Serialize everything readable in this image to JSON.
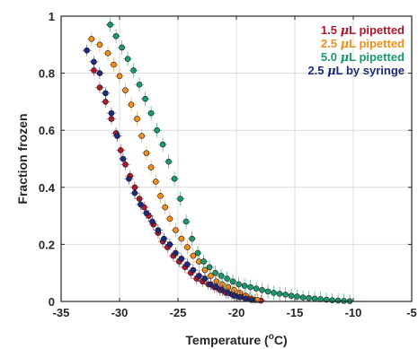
{
  "chart_data": {
    "type": "scatter",
    "title": "",
    "xlabel": "Temperature (°C)",
    "xlabel_parts": {
      "base": "Temperature (",
      "sup": "o",
      "unit": "C)"
    },
    "ylabel": "Fraction frozen",
    "xlim": [
      -35,
      -5
    ],
    "ylim": [
      0,
      1
    ],
    "xticks": [
      "-35",
      "-30",
      "-25",
      "-20",
      "-15",
      "-10",
      "-5"
    ],
    "yticks": [
      "0",
      "0.2",
      "0.4",
      "0.6",
      "0.8",
      "1"
    ],
    "xtick_values": [
      -35,
      -30,
      -25,
      -20,
      -15,
      -10,
      -5
    ],
    "ytick_values": [
      0,
      0.2,
      0.4,
      0.6,
      0.8,
      1
    ],
    "grid": true,
    "error_bars": true,
    "legend_position": "top-right",
    "series": [
      {
        "name": "1.5 μL pipetted",
        "legend_parts": {
          "num": "1.5 ",
          "mu": "μ",
          "rest": "L pipetted"
        },
        "color": "#b2182b",
        "x": [
          -32.2,
          -31.7,
          -31.2,
          -30.7,
          -30.3,
          -29.9,
          -29.5,
          -29.1,
          -28.7,
          -28.3,
          -27.9,
          -27.5,
          -27.1,
          -26.7,
          -26.3,
          -25.9,
          -25.4,
          -24.9,
          -24.4,
          -23.9,
          -23.4,
          -22.9,
          -22.4,
          -21.9,
          -21.4,
          -20.9,
          -20.4,
          -19.9,
          -19.4,
          -18.9,
          -18.4,
          -17.9
        ],
        "y": [
          0.81,
          0.75,
          0.7,
          0.64,
          0.59,
          0.53,
          0.48,
          0.44,
          0.4,
          0.36,
          0.33,
          0.3,
          0.27,
          0.24,
          0.21,
          0.19,
          0.16,
          0.14,
          0.12,
          0.1,
          0.08,
          0.07,
          0.06,
          0.05,
          0.04,
          0.03,
          0.025,
          0.02,
          0.015,
          0.01,
          0.005,
          0.003
        ],
        "xerr": 0.4,
        "yerr": 0.02
      },
      {
        "name": "2.5 μL pipetted",
        "legend_parts": {
          "num": "2.5 ",
          "mu": "μ",
          "rest": "L pipetted"
        },
        "color": "#f28e1c",
        "x": [
          -32.4,
          -31.7,
          -31.0,
          -30.5,
          -30.0,
          -29.5,
          -29.0,
          -28.5,
          -28.1,
          -27.7,
          -27.3,
          -26.9,
          -26.5,
          -26.1,
          -25.7,
          -25.2,
          -24.7,
          -24.2,
          -23.7,
          -23.2,
          -22.7,
          -22.2,
          -21.7,
          -21.2,
          -20.7,
          -20.2,
          -19.7,
          -19.2,
          -18.7,
          -18.2
        ],
        "y": [
          0.92,
          0.9,
          0.87,
          0.83,
          0.79,
          0.74,
          0.69,
          0.64,
          0.58,
          0.52,
          0.47,
          0.42,
          0.37,
          0.33,
          0.29,
          0.25,
          0.22,
          0.19,
          0.16,
          0.14,
          0.11,
          0.09,
          0.07,
          0.06,
          0.05,
          0.04,
          0.03,
          0.02,
          0.01,
          0.005
        ],
        "xerr": 0.4,
        "yerr": 0.025
      },
      {
        "name": "5.0 μL pipetted",
        "legend_parts": {
          "num": "5.0 ",
          "mu": "μ",
          "rest": "L pipetted"
        },
        "color": "#1a9a6c",
        "x": [
          -30.8,
          -30.3,
          -29.8,
          -29.3,
          -28.8,
          -28.3,
          -27.8,
          -27.3,
          -26.8,
          -26.3,
          -25.8,
          -25.3,
          -24.8,
          -24.3,
          -23.8,
          -23.3,
          -22.8,
          -22.3,
          -21.8,
          -21.3,
          -20.8,
          -20.3,
          -19.8,
          -19.3,
          -18.8,
          -18.3,
          -17.8,
          -17.3,
          -16.8,
          -16.3,
          -15.8,
          -15.3,
          -14.8,
          -14.3,
          -13.8,
          -13.3,
          -12.8,
          -12.3,
          -11.8,
          -11.3,
          -10.8,
          -10.3
        ],
        "y": [
          0.97,
          0.93,
          0.89,
          0.85,
          0.81,
          0.76,
          0.71,
          0.66,
          0.6,
          0.55,
          0.49,
          0.43,
          0.36,
          0.28,
          0.22,
          0.17,
          0.14,
          0.12,
          0.1,
          0.09,
          0.08,
          0.07,
          0.06,
          0.055,
          0.05,
          0.045,
          0.04,
          0.035,
          0.03,
          0.027,
          0.024,
          0.02,
          0.017,
          0.014,
          0.012,
          0.01,
          0.008,
          0.006,
          0.004,
          0.003,
          0.002,
          0.001
        ],
        "xerr": 0.4,
        "yerr": 0.025
      },
      {
        "name": "2.5 μL by syringe",
        "legend_parts": {
          "num": "2.5 ",
          "mu": "μ",
          "rest": "L by syringe"
        },
        "color": "#1f2a7a",
        "x": [
          -32.8,
          -32.2,
          -31.7,
          -31.2,
          -30.7,
          -30.2,
          -29.7,
          -29.2,
          -28.7,
          -28.2,
          -27.7,
          -27.2,
          -26.7,
          -26.2,
          -25.7,
          -25.2,
          -24.7,
          -24.2,
          -23.7,
          -23.2,
          -22.7,
          -22.2,
          -21.7,
          -21.2,
          -20.7,
          -20.2,
          -19.7,
          -19.2,
          -18.7
        ],
        "y": [
          0.88,
          0.84,
          0.8,
          0.73,
          0.66,
          0.58,
          0.5,
          0.43,
          0.38,
          0.34,
          0.31,
          0.28,
          0.25,
          0.22,
          0.2,
          0.17,
          0.15,
          0.13,
          0.11,
          0.09,
          0.08,
          0.06,
          0.05,
          0.04,
          0.03,
          0.02,
          0.015,
          0.01,
          0.005
        ],
        "xerr": 0.4,
        "yerr": 0.02
      }
    ]
  }
}
